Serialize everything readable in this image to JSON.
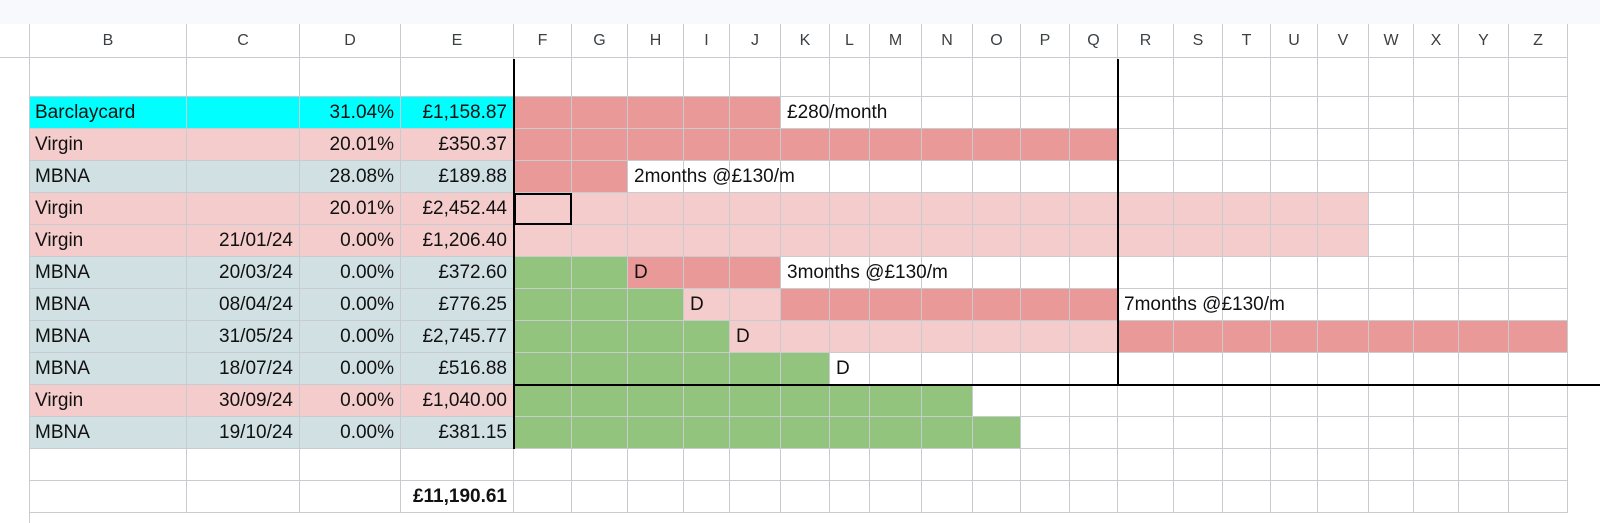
{
  "columns": [
    "B",
    "C",
    "D",
    "E",
    "F",
    "G",
    "H",
    "I",
    "J",
    "K",
    "L",
    "M",
    "N",
    "O",
    "P",
    "Q",
    "R",
    "S",
    "T",
    "U",
    "V",
    "W",
    "X",
    "Y",
    "Z"
  ],
  "colors": {
    "cyan": "#00ffff",
    "pink_light": "#f4cccc",
    "blue_grey": "#d0e0e3",
    "red": "#ea9999",
    "green": "#93c47d",
    "gridline": "#c8ccd1"
  },
  "rows": [
    {
      "name": "Barclaycard",
      "date": "",
      "rate": "31.04%",
      "amount": "£1,158.87",
      "color": "cyan"
    },
    {
      "name": "Virgin",
      "date": "",
      "rate": "20.01%",
      "amount": "£350.37",
      "color": "pink_light"
    },
    {
      "name": "MBNA",
      "date": "",
      "rate": "28.08%",
      "amount": "£189.88",
      "color": "blue_grey"
    },
    {
      "name": "Virgin",
      "date": "",
      "rate": "20.01%",
      "amount": "£2,452.44",
      "color": "pink_light"
    },
    {
      "name": "Virgin",
      "date": "21/01/24",
      "rate": "0.00%",
      "amount": "£1,206.40",
      "color": "pink_light"
    },
    {
      "name": "MBNA",
      "date": "20/03/24",
      "rate": "0.00%",
      "amount": "£372.60",
      "color": "blue_grey"
    },
    {
      "name": "MBNA",
      "date": "08/04/24",
      "rate": "0.00%",
      "amount": "£776.25",
      "color": "blue_grey"
    },
    {
      "name": "MBNA",
      "date": "31/05/24",
      "rate": "0.00%",
      "amount": "£2,745.77",
      "color": "blue_grey"
    },
    {
      "name": "MBNA",
      "date": "18/07/24",
      "rate": "0.00%",
      "amount": "£516.88",
      "color": "blue_grey"
    },
    {
      "name": "Virgin",
      "date": "30/09/24",
      "rate": "0.00%",
      "amount": "£1,040.00",
      "color": "pink_light"
    },
    {
      "name": "MBNA",
      "date": "19/10/24",
      "rate": "0.00%",
      "amount": "£381.15",
      "color": "blue_grey"
    }
  ],
  "timeline": [
    {
      "segments": [
        {
          "color": "red",
          "from": "F",
          "to": "J"
        }
      ],
      "label": {
        "col": "K",
        "text": "£280/month"
      }
    },
    {
      "segments": [
        {
          "color": "red",
          "from": "F",
          "to": "Q"
        }
      ]
    },
    {
      "segments": [
        {
          "color": "red",
          "from": "F",
          "to": "G"
        }
      ],
      "label": {
        "col": "H",
        "text": "2months @£130/m"
      }
    },
    {
      "segments": [
        {
          "color": "pink_light",
          "from": "F",
          "to": "V"
        }
      ]
    },
    {
      "segments": [
        {
          "color": "pink_light",
          "from": "F",
          "to": "V"
        }
      ]
    },
    {
      "segments": [
        {
          "color": "green",
          "from": "F",
          "to": "G"
        },
        {
          "color": "red",
          "from": "H",
          "to": "J"
        }
      ],
      "marker": {
        "col": "H",
        "text": "D"
      },
      "label": {
        "col": "K",
        "text": "3months @£130/m"
      }
    },
    {
      "segments": [
        {
          "color": "green",
          "from": "F",
          "to": "H"
        },
        {
          "color": "pink_light",
          "from": "I",
          "to": "J"
        },
        {
          "color": "red",
          "from": "K",
          "to": "Q"
        }
      ],
      "marker": {
        "col": "I",
        "text": "D"
      },
      "label": {
        "col": "R",
        "text": "7months @£130/m"
      }
    },
    {
      "segments": [
        {
          "color": "green",
          "from": "F",
          "to": "I"
        },
        {
          "color": "pink_light",
          "from": "J",
          "to": "Q"
        },
        {
          "color": "red",
          "from": "R",
          "to": "Z"
        }
      ],
      "marker": {
        "col": "J",
        "text": "D"
      }
    },
    {
      "segments": [
        {
          "color": "green",
          "from": "F",
          "to": "K"
        }
      ],
      "marker": {
        "col": "L",
        "text": "D"
      }
    },
    {
      "segments": [
        {
          "color": "green",
          "from": "F",
          "to": "N"
        }
      ]
    },
    {
      "segments": [
        {
          "color": "green",
          "from": "F",
          "to": "O"
        }
      ]
    }
  ],
  "total": "£11,190.61"
}
